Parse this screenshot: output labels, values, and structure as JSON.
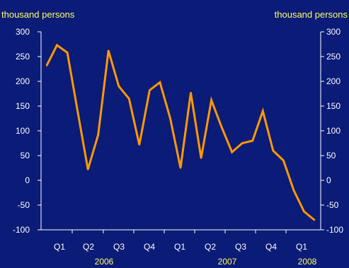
{
  "chart_data": {
    "type": "line",
    "title": "",
    "ylabel_left": "thousand persons",
    "ylabel_right": "thousand persons",
    "ylim": [
      -100,
      300
    ],
    "yticks": [
      "300",
      "250",
      "200",
      "150",
      "100",
      "50",
      "0",
      "-50",
      "-100"
    ],
    "ytick_values": [
      300,
      250,
      200,
      150,
      100,
      50,
      0,
      -50,
      -100
    ],
    "xtick_labels": [
      "Q1",
      "Q2",
      "Q3",
      "Q4",
      "Q1",
      "Q2",
      "Q3",
      "Q4",
      "Q1"
    ],
    "year_labels": [
      "2006",
      "2007",
      "2008"
    ],
    "grid": false,
    "line_color": "#ff9900",
    "axis_color": "#ffffff",
    "background_color": "#0a1b78",
    "series": [
      {
        "values": [
          232,
          273,
          258,
          140,
          22,
          92,
          262,
          190,
          165,
          72,
          182,
          198,
          125,
          25,
          177,
          45,
          162,
          107,
          57,
          75,
          80,
          140,
          60,
          40,
          -20,
          -63,
          -80
        ]
      }
    ]
  }
}
